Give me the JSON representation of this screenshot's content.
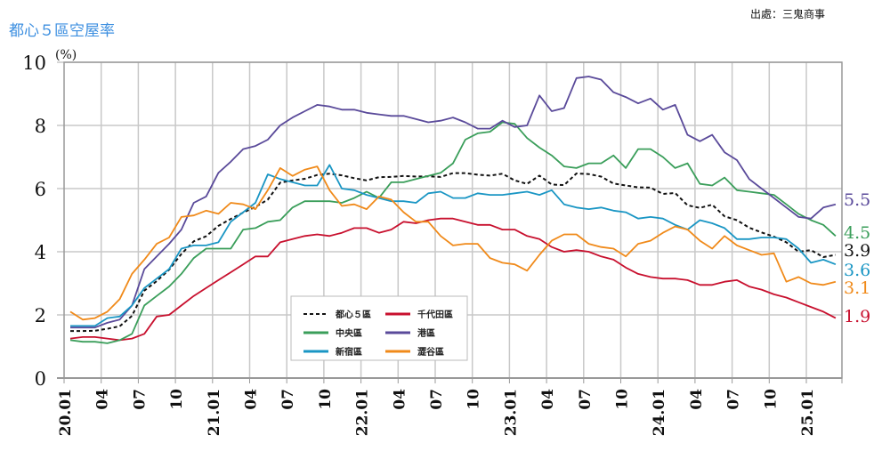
{
  "header": {
    "title": "都心５區空屋率",
    "source": "出處：三鬼商事"
  },
  "chart_data": {
    "type": "line",
    "title": "都心５區空屋率",
    "ylabel": "(%)",
    "xlabel": "",
    "ylim": [
      0,
      10
    ],
    "yticks": [
      "0",
      "2",
      "4",
      "6",
      "8",
      "10"
    ],
    "xtick_labels": [
      "20.01",
      "04",
      "07",
      "10",
      "21.01",
      "04",
      "07",
      "10",
      "22.01",
      "04",
      "07",
      "10",
      "23.01",
      "04",
      "07",
      "10",
      "24.01",
      "04",
      "07",
      "10",
      "25.01"
    ],
    "x_start": "2020.01",
    "x_end": "2025.03",
    "x_step": "month",
    "grid": true,
    "legend_placement": "bottom-center",
    "series": [
      {
        "name": "都心５區",
        "color": "#111111",
        "dashed": true,
        "end_label": "3.9",
        "values": [
          1.49,
          1.49,
          1.5,
          1.56,
          1.64,
          1.97,
          2.77,
          3.07,
          3.43,
          3.93,
          4.33,
          4.49,
          4.82,
          5.04,
          5.24,
          5.42,
          5.65,
          6.19,
          6.26,
          6.31,
          6.43,
          6.47,
          6.42,
          6.33,
          6.26,
          6.36,
          6.37,
          6.4,
          6.38,
          6.39,
          6.37,
          6.49,
          6.49,
          6.44,
          6.41,
          6.47,
          6.26,
          6.15,
          6.41,
          6.13,
          6.11,
          6.48,
          6.46,
          6.38,
          6.16,
          6.1,
          6.04,
          6.03,
          5.83,
          5.86,
          5.47,
          5.39,
          5.49,
          5.12,
          5.0,
          4.76,
          4.61,
          4.48,
          4.3,
          4.0,
          4.05,
          3.83,
          3.9
        ]
      },
      {
        "name": "千代田區",
        "color": "#c8102e",
        "dashed": false,
        "end_label": "1.9",
        "values": [
          1.25,
          1.3,
          1.3,
          1.25,
          1.2,
          1.25,
          1.4,
          1.95,
          2.0,
          2.3,
          2.6,
          2.85,
          3.1,
          3.35,
          3.6,
          3.85,
          3.85,
          4.3,
          4.4,
          4.5,
          4.55,
          4.5,
          4.6,
          4.75,
          4.75,
          4.6,
          4.7,
          4.95,
          4.9,
          5.0,
          5.05,
          5.05,
          4.95,
          4.85,
          4.85,
          4.7,
          4.7,
          4.5,
          4.4,
          4.15,
          4.0,
          4.05,
          4.0,
          3.85,
          3.75,
          3.5,
          3.3,
          3.2,
          3.15,
          3.15,
          3.1,
          2.95,
          2.95,
          3.05,
          3.1,
          2.9,
          2.8,
          2.65,
          2.55,
          2.4,
          2.25,
          2.1,
          1.9
        ]
      },
      {
        "name": "中央區",
        "color": "#3a9e5a",
        "dashed": false,
        "end_label": "4.5",
        "values": [
          1.2,
          1.15,
          1.15,
          1.1,
          1.2,
          1.4,
          2.3,
          2.6,
          2.9,
          3.3,
          3.8,
          4.1,
          4.1,
          4.1,
          4.7,
          4.75,
          4.95,
          5.0,
          5.4,
          5.6,
          5.6,
          5.6,
          5.55,
          5.7,
          5.9,
          5.7,
          6.2,
          6.2,
          6.3,
          6.4,
          6.5,
          6.8,
          7.55,
          7.75,
          7.8,
          8.1,
          8.05,
          7.6,
          7.3,
          7.05,
          6.7,
          6.65,
          6.8,
          6.8,
          7.05,
          6.65,
          7.25,
          7.25,
          7.0,
          6.65,
          6.8,
          6.15,
          6.1,
          6.35,
          5.95,
          5.9,
          5.85,
          5.8,
          5.5,
          5.2,
          5.0,
          4.85,
          4.5
        ]
      },
      {
        "name": "港區",
        "color": "#5a4a9a",
        "dashed": false,
        "end_label": "5.5",
        "values": [
          1.6,
          1.6,
          1.6,
          1.75,
          1.85,
          2.3,
          3.45,
          3.85,
          4.25,
          4.7,
          5.55,
          5.75,
          6.5,
          6.85,
          7.25,
          7.35,
          7.55,
          8.0,
          8.25,
          8.45,
          8.65,
          8.6,
          8.5,
          8.5,
          8.4,
          8.35,
          8.3,
          8.3,
          8.2,
          8.1,
          8.15,
          8.25,
          8.1,
          7.9,
          7.9,
          8.15,
          7.95,
          8.0,
          8.95,
          8.45,
          8.55,
          9.5,
          9.55,
          9.45,
          9.05,
          8.9,
          8.7,
          8.85,
          8.5,
          8.65,
          7.7,
          7.5,
          7.7,
          7.15,
          6.9,
          6.3,
          6.0,
          5.7,
          5.4,
          5.1,
          5.05,
          5.4,
          5.5
        ]
      },
      {
        "name": "新宿區",
        "color": "#1a96c4",
        "dashed": false,
        "end_label": "3.6",
        "values": [
          1.65,
          1.65,
          1.65,
          1.9,
          1.95,
          2.3,
          2.85,
          3.15,
          3.45,
          4.1,
          4.2,
          4.2,
          4.3,
          4.95,
          5.25,
          5.55,
          6.45,
          6.3,
          6.2,
          6.1,
          6.1,
          6.75,
          6.0,
          5.95,
          5.8,
          5.7,
          5.6,
          5.6,
          5.55,
          5.85,
          5.9,
          5.7,
          5.7,
          5.85,
          5.8,
          5.8,
          5.85,
          5.9,
          5.8,
          5.95,
          5.5,
          5.4,
          5.35,
          5.4,
          5.3,
          5.25,
          5.05,
          5.1,
          5.05,
          4.85,
          4.7,
          5.0,
          4.9,
          4.75,
          4.4,
          4.4,
          4.45,
          4.45,
          4.4,
          4.1,
          3.65,
          3.75,
          3.6
        ]
      },
      {
        "name": "澀谷區",
        "color": "#f08a1a",
        "dashed": false,
        "end_label": "3.1",
        "values": [
          2.1,
          1.85,
          1.9,
          2.1,
          2.5,
          3.3,
          3.75,
          4.25,
          4.45,
          5.1,
          5.15,
          5.3,
          5.2,
          5.55,
          5.5,
          5.35,
          5.95,
          6.65,
          6.4,
          6.6,
          6.7,
          5.95,
          5.45,
          5.5,
          5.35,
          5.75,
          5.65,
          5.25,
          4.95,
          4.95,
          4.5,
          4.2,
          4.25,
          4.25,
          3.8,
          3.65,
          3.6,
          3.4,
          3.9,
          4.35,
          4.55,
          4.55,
          4.25,
          4.15,
          4.1,
          3.85,
          4.25,
          4.35,
          4.6,
          4.8,
          4.7,
          4.35,
          4.1,
          4.5,
          4.2,
          4.05,
          3.9,
          3.95,
          3.05,
          3.2,
          3.0,
          2.95,
          3.05
        ]
      }
    ]
  }
}
